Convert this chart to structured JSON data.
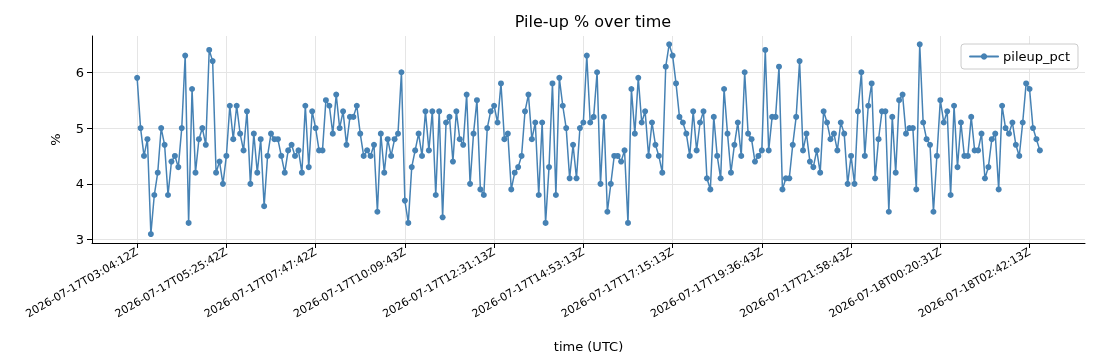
{
  "chart_data": {
    "type": "line",
    "title": "Pile-up % over time",
    "xlabel": "time (UTC)",
    "ylabel": "%",
    "categories": [
      "2026-07-17T03:04:12Z",
      null,
      null,
      null,
      null,
      null,
      null,
      null,
      null,
      null,
      null,
      null,
      null,
      null,
      null,
      null,
      null,
      null,
      null,
      null,
      null,
      null,
      null,
      null,
      null,
      null,
      "2026-07-17T05:25:42Z",
      null,
      null,
      null,
      null,
      null,
      null,
      null,
      null,
      null,
      null,
      null,
      null,
      null,
      null,
      null,
      null,
      null,
      null,
      null,
      null,
      null,
      null,
      null,
      null,
      null,
      "2026-07-17T07:47:42Z",
      null,
      null,
      null,
      null,
      null,
      null,
      null,
      null,
      null,
      null,
      null,
      null,
      null,
      null,
      null,
      null,
      null,
      null,
      null,
      null,
      null,
      null,
      null,
      null,
      null,
      "2026-07-17T10:09:43Z",
      null,
      null,
      null,
      null,
      null,
      null,
      null,
      null,
      null,
      null,
      null,
      null,
      null,
      null,
      null,
      null,
      null,
      null,
      null,
      null,
      null,
      null,
      null,
      null,
      null,
      "2026-07-17T12:31:13Z",
      null,
      null,
      null,
      null,
      null,
      null,
      null,
      null,
      null,
      null,
      null,
      null,
      null,
      null,
      null,
      null,
      null,
      null,
      null,
      null,
      null,
      null,
      null,
      null,
      null,
      "2026-07-17T14:53:13Z",
      null,
      null,
      null,
      null,
      null,
      null,
      null,
      null,
      null,
      null,
      null,
      null,
      null,
      null,
      null,
      null,
      null,
      null,
      null,
      null,
      null,
      null,
      null,
      null,
      null,
      "2026-07-17T17:15:13Z",
      null,
      null,
      null,
      null,
      null,
      null,
      null,
      null,
      null,
      null,
      null,
      null,
      null,
      null,
      null,
      null,
      null,
      null,
      null,
      null,
      null,
      null,
      null,
      null,
      null,
      "2026-07-17T19:36:43Z",
      null,
      null,
      null,
      null,
      null,
      null,
      null,
      null,
      null,
      null,
      null,
      null,
      null,
      null,
      null,
      null,
      null,
      null,
      null,
      null,
      null,
      null,
      null,
      null,
      null,
      "2026-07-17T21:58:43Z",
      null,
      null,
      null,
      null,
      null,
      null,
      null,
      null,
      null,
      null,
      null,
      null,
      null,
      null,
      null,
      null,
      null,
      null,
      null,
      null,
      null,
      null,
      null,
      null,
      null,
      "2026-07-18T00:20:31Z",
      null,
      null,
      null,
      null,
      null,
      null,
      null,
      null,
      null,
      null,
      null,
      null,
      null,
      null,
      null,
      null,
      null,
      null,
      null,
      null,
      null,
      null,
      null,
      null,
      null,
      "2026-07-18T02:42:13Z",
      null,
      null,
      null
    ],
    "series": [
      {
        "name": "pileup_pct",
        "color": "#4682b4",
        "values": [
          5.9,
          5.0,
          4.5,
          4.8,
          3.1,
          3.8,
          4.2,
          5.0,
          4.7,
          3.8,
          4.4,
          4.5,
          4.3,
          5.0,
          6.3,
          3.3,
          5.7,
          4.2,
          4.8,
          5.0,
          4.7,
          6.4,
          6.2,
          4.2,
          4.4,
          4.0,
          4.5,
          5.4,
          4.8,
          5.4,
          4.9,
          4.6,
          5.3,
          4.0,
          4.9,
          4.2,
          4.8,
          3.6,
          4.5,
          4.9,
          4.8,
          4.8,
          4.5,
          4.2,
          4.6,
          4.7,
          4.5,
          4.6,
          4.2,
          5.4,
          4.3,
          5.3,
          5.0,
          4.6,
          4.6,
          5.5,
          5.4,
          4.9,
          5.6,
          5.0,
          5.3,
          4.7,
          5.2,
          5.2,
          5.4,
          4.9,
          4.5,
          4.6,
          4.5,
          4.7,
          3.5,
          4.9,
          4.2,
          4.8,
          4.5,
          4.8,
          4.9,
          6.0,
          3.7,
          3.3,
          4.3,
          4.6,
          4.9,
          4.5,
          5.3,
          4.6,
          5.3,
          3.8,
          5.3,
          3.4,
          5.1,
          5.2,
          4.4,
          5.3,
          4.8,
          4.7,
          5.6,
          4.0,
          4.9,
          5.5,
          3.9,
          3.8,
          5.0,
          5.3,
          5.4,
          5.1,
          5.8,
          4.8,
          4.9,
          3.9,
          4.2,
          4.3,
          4.5,
          5.3,
          5.6,
          4.8,
          5.1,
          3.8,
          5.1,
          3.3,
          4.3,
          5.8,
          3.8,
          5.9,
          5.4,
          5.0,
          4.1,
          4.7,
          4.1,
          5.0,
          5.1,
          6.3,
          5.1,
          5.2,
          6.0,
          4.0,
          5.2,
          3.5,
          4.0,
          4.5,
          4.5,
          4.4,
          4.6,
          3.3,
          5.7,
          4.9,
          5.9,
          5.1,
          5.3,
          4.5,
          5.1,
          4.7,
          4.5,
          4.2,
          6.1,
          6.5,
          6.3,
          5.8,
          5.2,
          5.1,
          4.9,
          4.5,
          5.3,
          4.6,
          5.1,
          5.3,
          4.1,
          3.9,
          5.2,
          4.5,
          4.1,
          5.7,
          4.9,
          4.2,
          4.7,
          5.1,
          4.5,
          6.0,
          4.9,
          4.8,
          4.4,
          4.5,
          4.6,
          6.4,
          4.6,
          5.2,
          5.2,
          6.1,
          3.9,
          4.1,
          4.1,
          4.7,
          5.2,
          6.2,
          4.6,
          4.9,
          4.4,
          4.3,
          4.6,
          4.2,
          5.3,
          5.1,
          4.8,
          4.9,
          4.6,
          5.1,
          4.9,
          4.0,
          4.5,
          4.0,
          5.3,
          6.0,
          4.5,
          5.4,
          5.8,
          4.1,
          4.8,
          5.3,
          5.3,
          3.5,
          5.2,
          4.2,
          5.5,
          5.6,
          4.9,
          5.0,
          5.0,
          3.9,
          6.5,
          5.1,
          4.8,
          4.7,
          3.5,
          4.5,
          5.5,
          5.1,
          5.3,
          3.8,
          5.4,
          4.3,
          5.1,
          4.5,
          4.5,
          5.2,
          4.6,
          4.6,
          4.9,
          4.1,
          4.3,
          4.8,
          4.9,
          3.9,
          5.4,
          5.0,
          4.9,
          5.1,
          4.7,
          4.5,
          5.1,
          5.8,
          5.7,
          5.0,
          4.8,
          4.6
        ]
      }
    ],
    "ylim": [
      2.94,
      6.65
    ],
    "yticks": [
      3,
      4,
      5,
      6
    ],
    "grid": true,
    "legend": "top right",
    "marker": "circle",
    "line_style": "solid"
  }
}
